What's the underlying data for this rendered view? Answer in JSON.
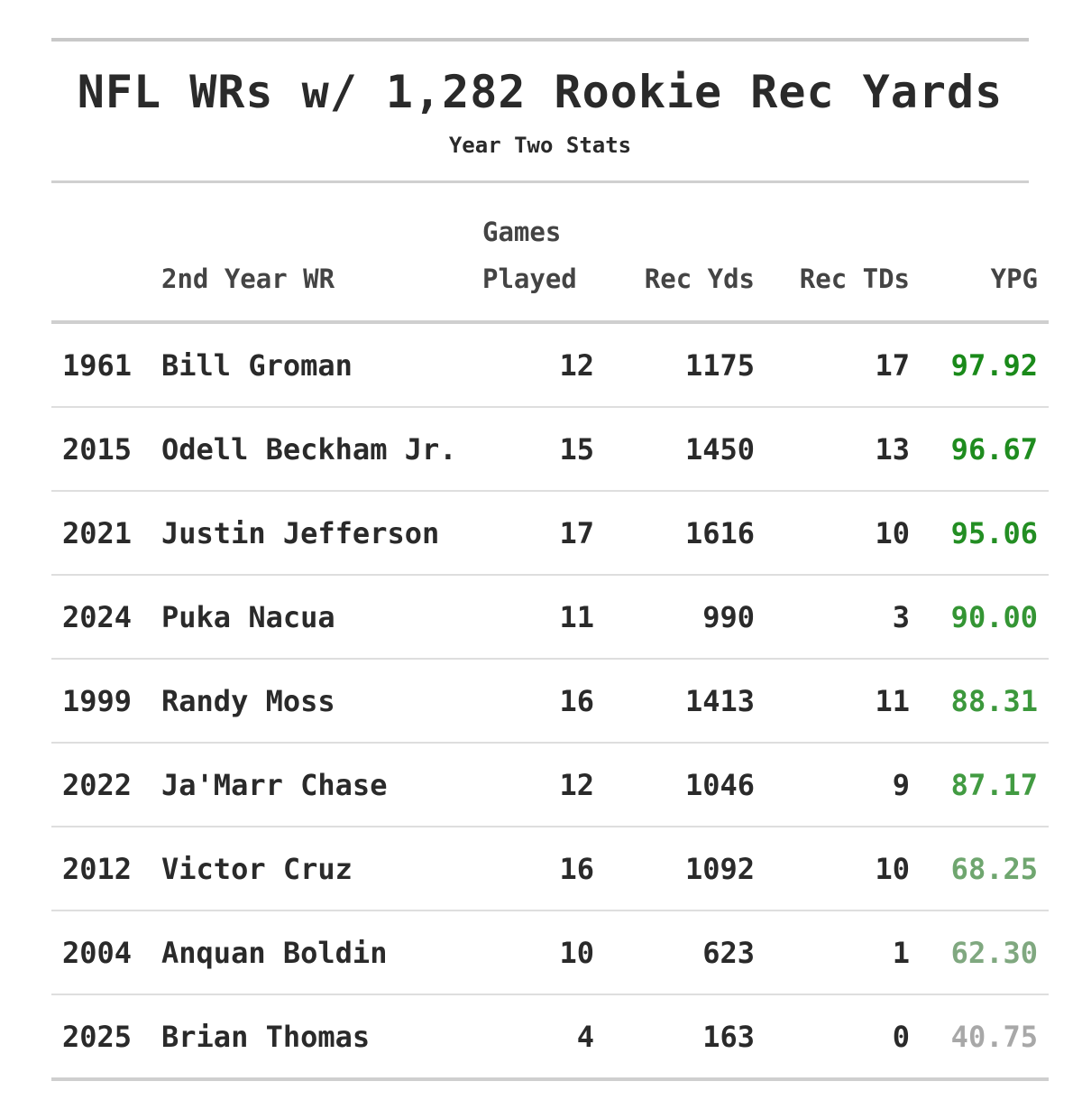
{
  "chart_data": {
    "type": "table",
    "title": "NFL WRs w/ 1,282 Rookie Rec Yards",
    "subtitle": "Year Two Stats",
    "columns": [
      "",
      "2nd Year WR",
      "Games Played",
      "Rec Yds",
      "Rec TDs",
      "YPG"
    ],
    "rows": [
      {
        "year": "1961",
        "name": "Bill Groman",
        "games": "12",
        "yds": "1175",
        "tds": "17",
        "ypg": "97.92",
        "color": "#1a8a1a"
      },
      {
        "year": "2015",
        "name": "Odell Beckham Jr.",
        "games": "15",
        "yds": "1450",
        "tds": "13",
        "ypg": "96.67",
        "color": "#1f8c1f"
      },
      {
        "year": "2021",
        "name": "Justin Jefferson",
        "games": "17",
        "yds": "1616",
        "tds": "10",
        "ypg": "95.06",
        "color": "#238e23"
      },
      {
        "year": "2024",
        "name": "Puka Nacua",
        "games": "11",
        "yds": "990",
        "tds": "3",
        "ypg": "90.00",
        "color": "#349534"
      },
      {
        "year": "1999",
        "name": "Randy Moss",
        "games": "16",
        "yds": "1413",
        "tds": "11",
        "ypg": "88.31",
        "color": "#3c983c"
      },
      {
        "year": "2022",
        "name": "Ja'Marr Chase",
        "games": "12",
        "yds": "1046",
        "tds": "9",
        "ypg": "87.17",
        "color": "#429b42"
      },
      {
        "year": "2012",
        "name": "Victor Cruz",
        "games": "16",
        "yds": "1092",
        "tds": "10",
        "ypg": "68.25",
        "color": "#6fa66f"
      },
      {
        "year": "2004",
        "name": "Anquan Boldin",
        "games": "10",
        "yds": "623",
        "tds": "1",
        "ypg": "62.30",
        "color": "#80a880"
      },
      {
        "year": "2025",
        "name": "Brian Thomas",
        "games": "4",
        "yds": "163",
        "tds": "0",
        "ypg": "40.75",
        "color": "#a8a8a8"
      }
    ]
  }
}
